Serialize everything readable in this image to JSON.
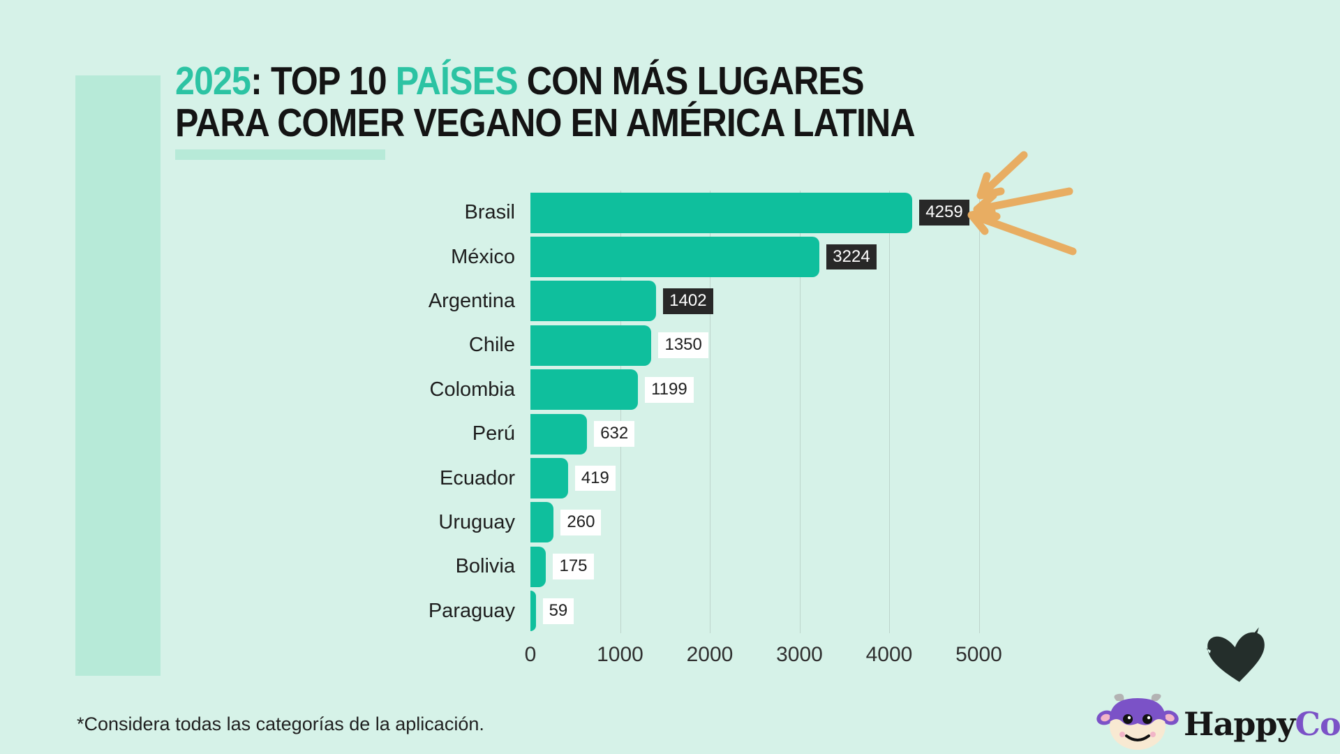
{
  "title": {
    "accent1": "2025",
    "colon": ":",
    "top10": " TOP 10 ",
    "paises": "PAÍSES",
    "rest1": " CON MÁS LUGARES",
    "line2": "PARA COMER VEGANO EN AMÉRICA LATINA"
  },
  "chart_data": {
    "type": "bar",
    "orientation": "horizontal",
    "categories": [
      "Brasil",
      "México",
      "Argentina",
      "Chile",
      "Colombia",
      "Perú",
      "Ecuador",
      "Uruguay",
      "Bolivia",
      "Paraguay"
    ],
    "values": [
      4259,
      3224,
      1402,
      1350,
      1199,
      632,
      419,
      260,
      175,
      59
    ],
    "value_label_style": [
      "dark",
      "dark",
      "dark",
      "light",
      "light",
      "light",
      "light",
      "light",
      "light",
      "light"
    ],
    "xlim": [
      0,
      5000
    ],
    "xticks": [
      0,
      1000,
      2000,
      3000,
      4000,
      5000
    ],
    "grid": "vertical",
    "legend": "none",
    "title": "2025: TOP 10 PAÍSES CON MÁS LUGARES PARA COMER VEGANO EN AMÉRICA LATINA",
    "xlabel": "",
    "ylabel": ""
  },
  "footnote": "*Considera todas las categorías de la aplicación.",
  "logo": {
    "happy": "Happy",
    "cow": "Cow"
  },
  "annotation": {
    "arrows": "three hand-drawn arrows pointing at top value"
  },
  "colors": {
    "background": "#d6f2e8",
    "panel": "#b7ead8",
    "bar": "#0fbf9d",
    "title_accent": "#2cc3a3",
    "chip_dark_bg": "#282828",
    "chip_dark_text": "#ffffff",
    "chip_light_bg": "#ffffff",
    "chip_light_text": "#1d1d1d",
    "gridline": "#bdd4cb",
    "arrows": "#e8ad62",
    "logo_purple": "#7b52c7",
    "heart": "#242e2b"
  }
}
